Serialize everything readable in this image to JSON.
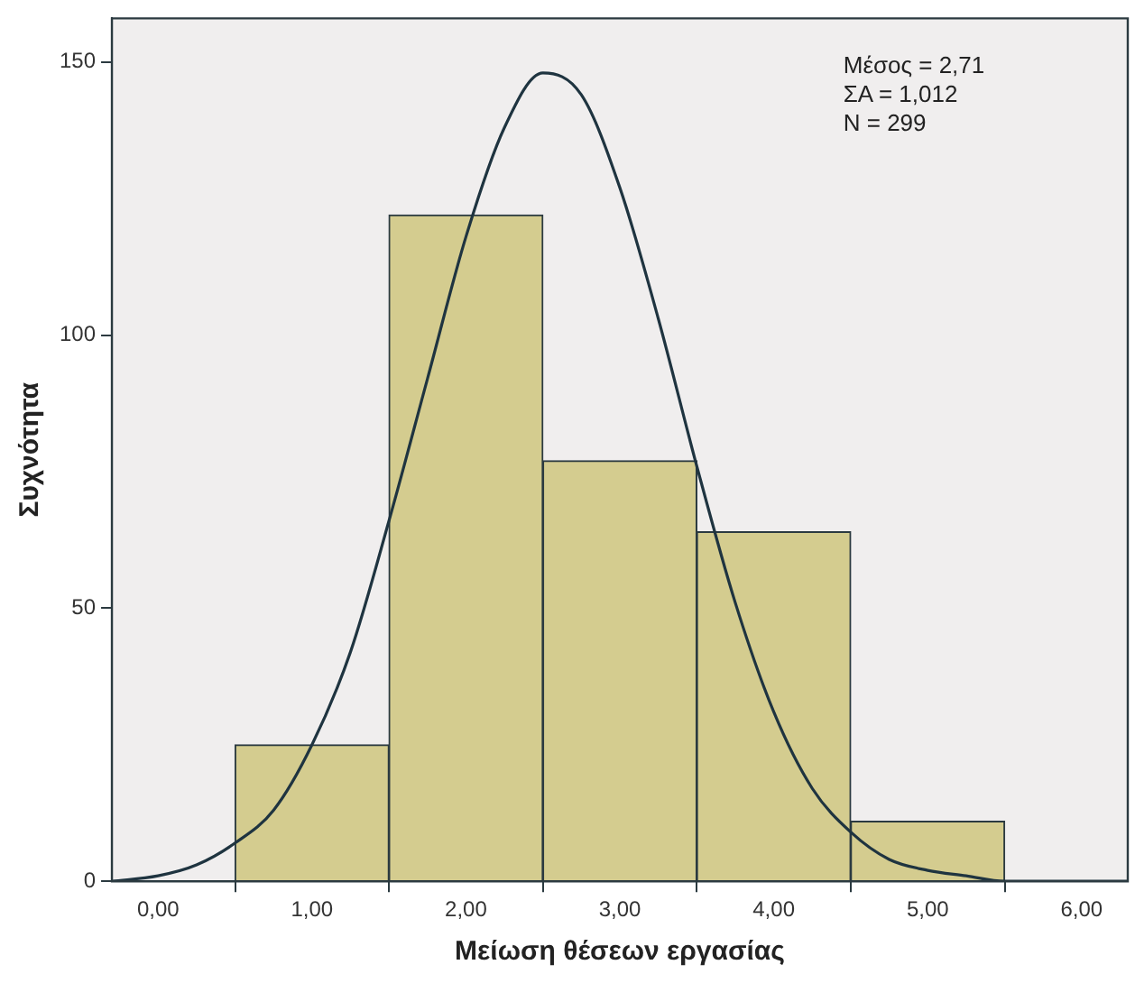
{
  "chart_data": {
    "type": "histogram",
    "xlabel": "Μείωση θέσεων εργασίας",
    "ylabel": "Συχνότητα",
    "bins": [
      0.5,
      1.5,
      2.5,
      3.5,
      4.5,
      5.5
    ],
    "values": [
      25,
      122,
      77,
      64,
      11
    ],
    "color": "#d4cc8f",
    "series": [
      {
        "type": "line",
        "color": "#1f3440",
        "x": [
          -0.3,
          0,
          0.25,
          0.5,
          0.75,
          1,
          1.25,
          1.5,
          1.75,
          2,
          2.25,
          2.5,
          2.75,
          3,
          3.25,
          3.5,
          3.75,
          4,
          4.25,
          4.5,
          4.75,
          5,
          5.25,
          5.5,
          6.3
        ],
        "values": [
          0,
          1,
          3,
          7,
          13,
          25,
          42,
          66,
          92,
          118,
          138,
          148,
          144,
          127,
          103,
          76,
          51,
          31,
          17,
          9,
          4,
          2,
          1,
          0,
          0
        ]
      }
    ],
    "xlim": [
      -0.3,
      6.3
    ],
    "ylim": [
      0,
      158
    ],
    "xticks": [
      {
        "value": 0,
        "label": "0,00"
      },
      {
        "value": 1,
        "label": "1,00"
      },
      {
        "value": 2,
        "label": "2,00"
      },
      {
        "value": 3,
        "label": "3,00"
      },
      {
        "value": 4,
        "label": "4,00"
      },
      {
        "value": 5,
        "label": "5,00"
      },
      {
        "value": 6,
        "label": "6,00"
      }
    ],
    "yticks": [
      0,
      50,
      100,
      150
    ],
    "annotations": [
      "Μέσος = 2,71",
      "ΣΑ = 1,012",
      "N = 299"
    ],
    "grid": false,
    "legend": false,
    "marker": "none"
  }
}
